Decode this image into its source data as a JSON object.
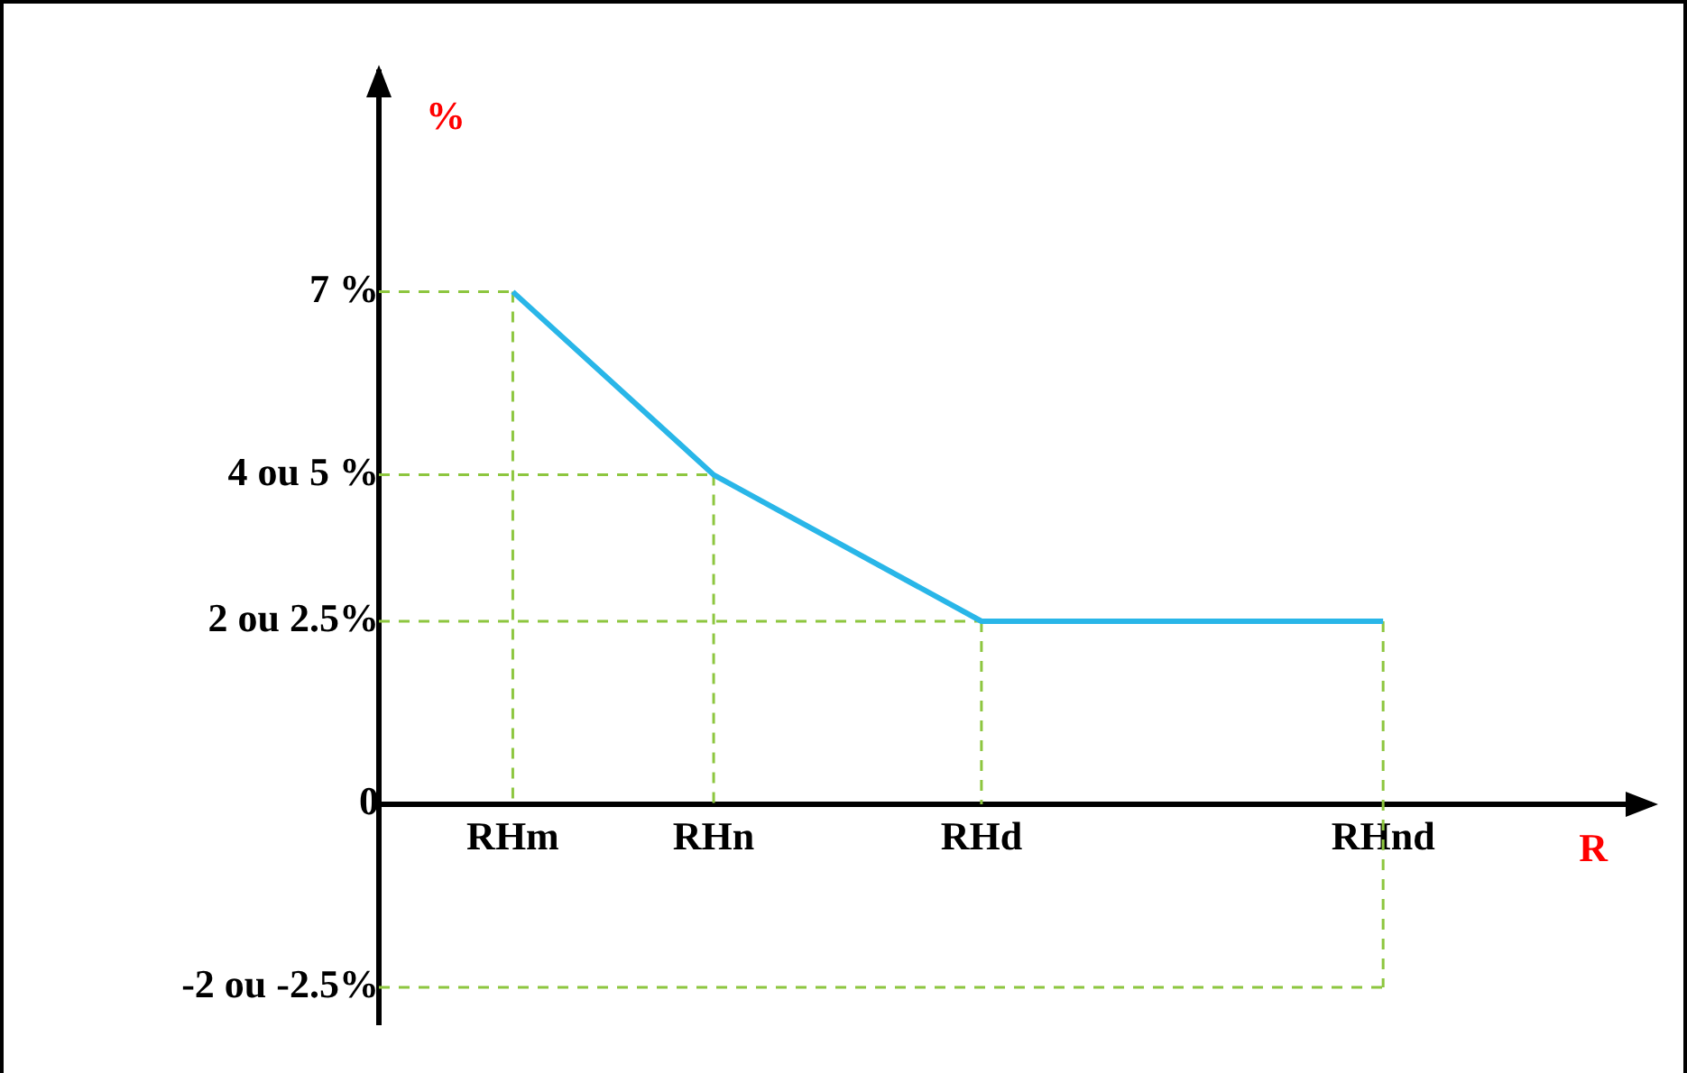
{
  "chart_data": {
    "type": "line",
    "xlabel": "R",
    "ylabel": "%",
    "categories": [
      null,
      null,
      "RHm",
      null,
      null,
      "RHn",
      null,
      null,
      null,
      "RHd",
      null,
      null,
      null,
      null,
      null,
      "RHnd",
      null,
      null,
      null,
      null
    ],
    "series": [
      {
        "color": "#29b6e8",
        "values": [
          null,
          null,
          7,
          null,
          null,
          4.5,
          null,
          null,
          null,
          2.5,
          null,
          null,
          null,
          null,
          null,
          2.5,
          null,
          null,
          null,
          null
        ]
      }
    ],
    "ylim": [
      -3,
      10
    ],
    "yticks": [
      {
        "value": 7,
        "label": "7 %"
      },
      {
        "value": 4.5,
        "label": "4 ou 5 %"
      },
      {
        "value": 2.5,
        "label": "2 ou 2.5%"
      },
      {
        "value": 0,
        "label": "0"
      },
      {
        "value": -2.5,
        "label": "-2 ou -2.5%"
      }
    ],
    "ref_lines": [
      {
        "axis": "y",
        "value": 7,
        "color": "#8dc63f",
        "line_style": "dashed"
      },
      {
        "axis": "y",
        "value": 4.5,
        "color": "#8dc63f",
        "line_style": "dashed"
      },
      {
        "axis": "y",
        "value": 2.5,
        "color": "#8dc63f",
        "line_style": "dashed"
      },
      {
        "axis": "y",
        "value": -2.5,
        "color": "#8dc63f",
        "line_style": "dashed"
      },
      {
        "axis": "x",
        "value": "RHm",
        "color": "#8dc63f",
        "line_style": "dashed"
      },
      {
        "axis": "x",
        "value": "RHn",
        "color": "#8dc63f",
        "line_style": "dashed"
      },
      {
        "axis": "x",
        "value": "RHd",
        "color": "#8dc63f",
        "line_style": "dashed"
      },
      {
        "axis": "x",
        "value": "RHnd",
        "color": "#8dc63f",
        "line_style": "dashed"
      }
    ],
    "grid": false,
    "legend": false,
    "marker": "none"
  }
}
